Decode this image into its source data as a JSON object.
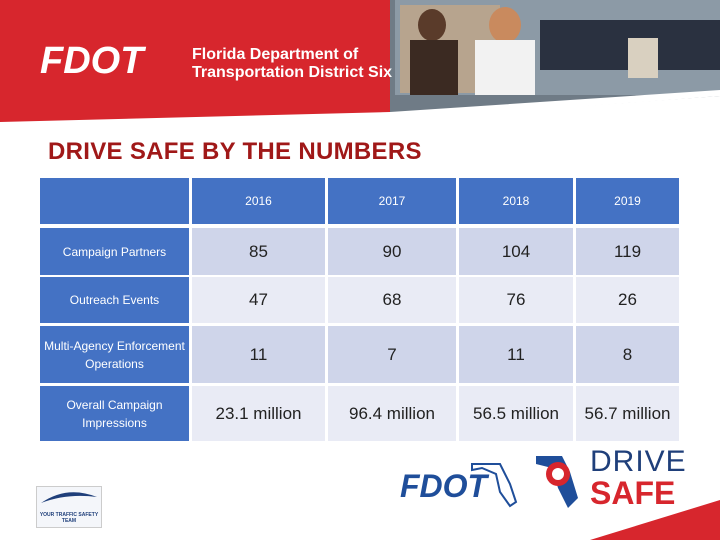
{
  "header": {
    "logo": "FDOT",
    "org_line1": "Florida Department of",
    "org_line2": "Transportation District Six"
  },
  "title": "DRIVE SAFE BY THE NUMBERS",
  "table": {
    "columns": [
      "2016",
      "2017",
      "2018",
      "2019"
    ],
    "rows": [
      {
        "label": "Campaign Partners",
        "cells": [
          85,
          90,
          104,
          119
        ]
      },
      {
        "label": "Outreach Events",
        "cells": [
          47,
          68,
          76,
          26
        ]
      },
      {
        "label": "Multi-Agency Enforcement Operations",
        "cells": [
          11,
          7,
          11,
          8
        ]
      },
      {
        "label": "Overall Campaign Impressions",
        "cells": [
          "23.1 million",
          "96.4 million",
          "56.5 million",
          "56.7 million"
        ]
      }
    ]
  },
  "footer": {
    "fdot": "FDOT",
    "drive": "DRIVE",
    "safe": "SAFE",
    "team": "YOUR TRAFFIC SAFETY TEAM"
  }
}
